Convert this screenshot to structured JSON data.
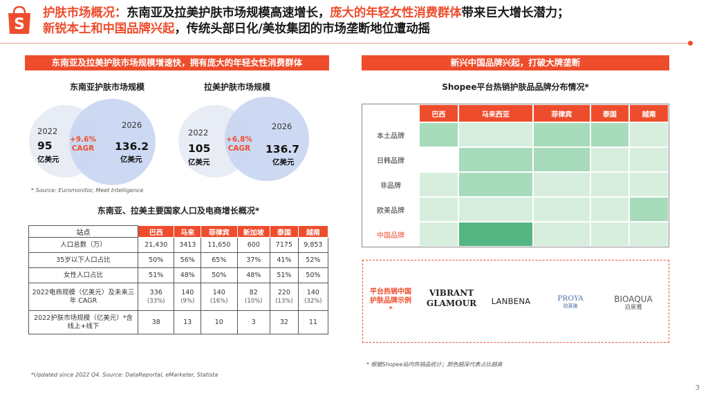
{
  "header": {
    "title_line1_a": "护肤市场概况：",
    "title_line1_b": "东南亚及拉美护肤市场规模高速增长，",
    "title_line1_c": "庞大的年轻女性消费群体",
    "title_line1_d": "带来巨大增长潜力；",
    "title_line2_a": "新锐本土和中国品牌兴起",
    "title_line2_b": "，传统头部日化/美妆集团的市场垄断地位遭动摇",
    "logo_letter": "S"
  },
  "colors": {
    "brand": "#ee4d2d",
    "circle_small": "#e8ecf4",
    "circle_big": "#c9d6f1"
  },
  "left": {
    "banner": "东南亚及拉美护肤市场规模增速快，拥有庞大的年轻女性消费群体",
    "sea": {
      "title": "东南亚护肤市场规模",
      "year_a": "2022",
      "value_a": "95",
      "unit_a": "亿美元",
      "year_b": "2026",
      "value_b": "136.2",
      "unit_b": "亿美元",
      "cagr_value": "+9.6%",
      "cagr_label": "CAGR"
    },
    "latam": {
      "title": "拉美护肤市场规模",
      "year_a": "2022",
      "value_a": "105",
      "unit_a": "亿美元",
      "year_b": "2026",
      "value_b": "136.7",
      "unit_b": "亿美元",
      "cagr_value": "+6.8%",
      "cagr_label": "CAGR"
    },
    "source_note": "* Source: Euromonitor, Meet Intelligence",
    "table_title": "东南亚、拉美主要国家人口及电商增长概况*",
    "table": {
      "header": [
        "站点",
        "巴西",
        "马来",
        "菲律宾",
        "新加坡",
        "泰国",
        "越南"
      ],
      "rows": [
        {
          "label": "人口总数（万）",
          "cells": [
            [
              "21,430",
              ""
            ],
            [
              "3413",
              ""
            ],
            [
              "11,650",
              ""
            ],
            [
              "600",
              ""
            ],
            [
              "7175",
              ""
            ],
            [
              "9,853",
              ""
            ]
          ]
        },
        {
          "label": "35岁以下人口占比",
          "cells": [
            [
              "50%",
              ""
            ],
            [
              "56%",
              ""
            ],
            [
              "65%",
              ""
            ],
            [
              "37%",
              ""
            ],
            [
              "41%",
              ""
            ],
            [
              "52%",
              ""
            ]
          ]
        },
        {
          "label": "女性人口占比",
          "cells": [
            [
              "51%",
              ""
            ],
            [
              "48%",
              ""
            ],
            [
              "50%",
              ""
            ],
            [
              "48%",
              ""
            ],
            [
              "51%",
              ""
            ],
            [
              "50%",
              ""
            ]
          ]
        },
        {
          "label": "2022电商规模（亿美元）及未来三年 CAGR",
          "cells": [
            [
              "336",
              "(33%)"
            ],
            [
              "140",
              "(9%)"
            ],
            [
              "140",
              "(16%)"
            ],
            [
              "82",
              "(10%)"
            ],
            [
              "220",
              "(13%)"
            ],
            [
              "140",
              "(32%)"
            ]
          ]
        },
        {
          "label": "2022护肤市场规模（亿美元）*含线上+线下",
          "cells": [
            [
              "38",
              ""
            ],
            [
              "13",
              ""
            ],
            [
              "10",
              ""
            ],
            [
              "3",
              ""
            ],
            [
              "32",
              ""
            ],
            [
              "11",
              ""
            ]
          ]
        }
      ]
    },
    "table_note": "*Updated since 2022 Q4. Source: DataReportal, eMarketer, Statista"
  },
  "right": {
    "banner": "新兴中国品牌兴起，打破大牌垄断",
    "heatmap_title": "Shopee平台热销护肤品品牌分布情况*",
    "heatmap": {
      "columns": [
        "巴西",
        "马来西亚",
        "菲律宾",
        "泰国",
        "越南"
      ],
      "rows": [
        {
          "label": "本土品牌",
          "levels": [
            2,
            1,
            2,
            2,
            1
          ],
          "highlight": false
        },
        {
          "label": "日韩品牌",
          "levels": [
            0,
            2,
            2,
            1,
            1
          ],
          "highlight": false
        },
        {
          "label": "非品牌",
          "levels": [
            1,
            2,
            1,
            1,
            1
          ],
          "highlight": false
        },
        {
          "label": "欧美品牌",
          "levels": [
            1,
            1,
            1,
            1,
            2
          ],
          "highlight": false
        },
        {
          "label": "中国品牌",
          "levels": [
            1,
            3,
            1,
            1,
            1
          ],
          "highlight": true
        }
      ]
    },
    "example_label": "平台热销中国护肤品牌示例*",
    "brands": {
      "b1_line1": "VIBRANT",
      "b1_line2": "GLAMOUR",
      "b2": "LANBENA",
      "b3_line1": "PROYA",
      "b3_line2": "珀莱雅",
      "b4_line1": "BIOAQUA",
      "b4_line2": "泊泉雅"
    },
    "note": "* 根据Shopee站内热销品统计；颜色越深代表占比越高"
  },
  "page_number": "3"
}
